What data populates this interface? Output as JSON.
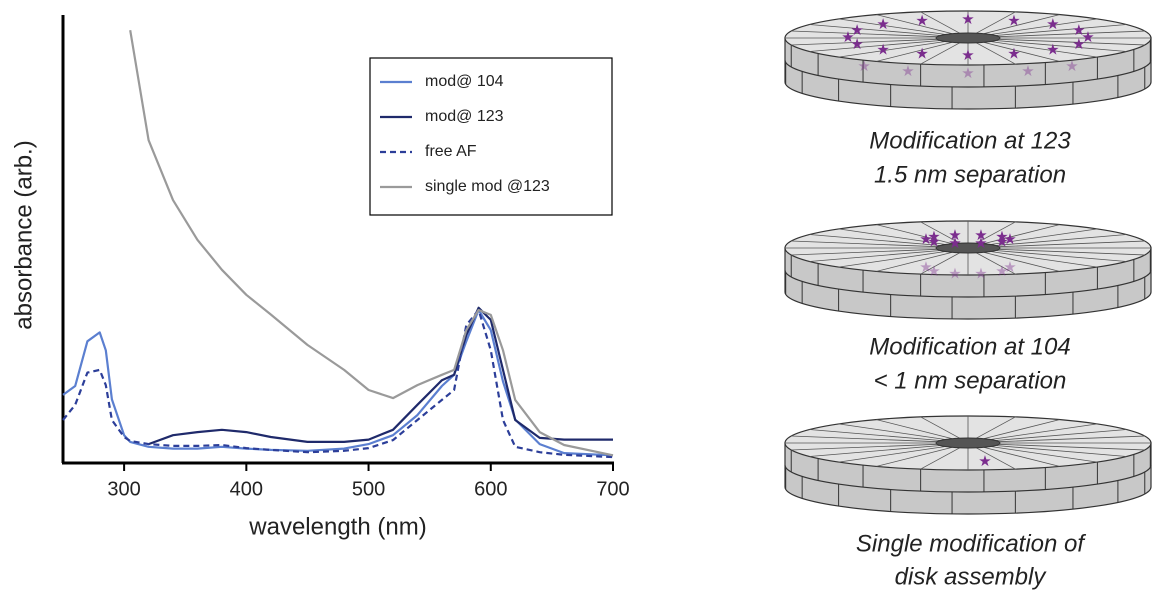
{
  "chart_data": {
    "type": "line",
    "xlabel": "wavelength (nm)",
    "ylabel": "absorbance (arb.)",
    "x": [
      250,
      260,
      270,
      280,
      285,
      290,
      300,
      305,
      320,
      340,
      360,
      380,
      400,
      420,
      450,
      480,
      500,
      520,
      540,
      560,
      570,
      580,
      590,
      600,
      610,
      620,
      640,
      660,
      700
    ],
    "series": [
      {
        "name": "mod@ 104",
        "color": "#5b7fd0",
        "dashed": false,
        "values": [
          15,
          17,
          27,
          29,
          25,
          14,
          6,
          4.5,
          3.4,
          3,
          3,
          3.4,
          3,
          2.7,
          2.5,
          3,
          4,
          6,
          10.5,
          17,
          19.5,
          27,
          34,
          29.5,
          18,
          9.5,
          4,
          2,
          1.5
        ]
      },
      {
        "name": "mod@ 123",
        "color": "#1f2a6b",
        "dashed": false,
        "values": [
          null,
          null,
          null,
          null,
          null,
          null,
          null,
          null,
          4,
          6,
          6.7,
          7.2,
          6.7,
          5.6,
          4.5,
          4.5,
          5,
          7.2,
          12.8,
          18.3,
          19.5,
          28.4,
          34.5,
          31.8,
          20.6,
          9.4,
          5.4,
          5,
          5
        ]
      },
      {
        "name": "free AF",
        "color": "#2c3e99",
        "dashed": true,
        "values": [
          9.4,
          12.8,
          20,
          20.6,
          17.2,
          9.4,
          5.6,
          4.7,
          4,
          3.6,
          3.6,
          3.8,
          3.1,
          2.7,
          2.2,
          2.5,
          3.1,
          4.9,
          9.4,
          13.9,
          16.1,
          30.6,
          34,
          25,
          9.4,
          3.4,
          2.2,
          1.6,
          1.1
        ]
      },
      {
        "name": "single mod @123",
        "color": "#9a9a9a",
        "dashed": false,
        "values": [
          null,
          null,
          null,
          null,
          null,
          null,
          null,
          96.6,
          72,
          58.6,
          49.7,
          43,
          37.4,
          33,
          26.2,
          20.6,
          16.1,
          14.3,
          17.2,
          19.5,
          20.6,
          29.5,
          34,
          32.9,
          25,
          13.9,
          6.7,
          3.8,
          1.5
        ]
      }
    ],
    "xlim": [
      250,
      700
    ],
    "xticks": [
      300,
      400,
      500,
      600,
      700
    ],
    "ylim": [
      0,
      100
    ],
    "legend": "upper right"
  },
  "diagram": {
    "panels": [
      {
        "caption": [
          "Modification at 123",
          "1.5 nm separation"
        ]
      },
      {
        "caption": [
          "Modification at 104",
          "< 1 nm separation"
        ]
      },
      {
        "caption": [
          "Single modification of",
          "disk assembly"
        ]
      }
    ]
  }
}
